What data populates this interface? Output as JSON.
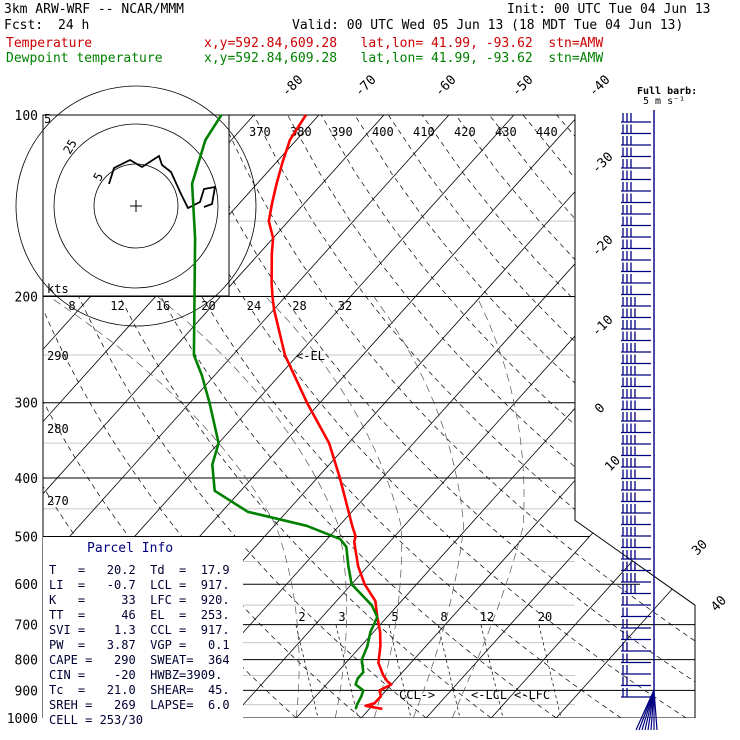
{
  "header": {
    "model": "3km ARW-WRF -- NCAR/MMM",
    "init": "Init: 00 UTC Tue 04 Jun 13",
    "fcst_label": "Fcst:",
    "fcst_value": "24 h",
    "valid": "Valid: 00 UTC Wed 05 Jun 13 (18 MDT Tue 04 Jun 13)",
    "temp_label": "Temperature",
    "dew_label": "Dewpoint temperature",
    "temp_info": "x,y=592.84,609.28   lat,lon= 41.99, -93.62  stn=AMW",
    "dew_info": "x,y=592.84,609.28   lat,lon= 41.99, -93.62  stn=AMW"
  },
  "barb_key": {
    "line1": "Full barb:",
    "line2": "5 m s⁻¹"
  },
  "colors": {
    "temperature": "#ff0000",
    "dewpoint": "#008000",
    "text_temp": "#cc0000",
    "text_dew": "#008000",
    "barbs": "#000080"
  },
  "chart_data": {
    "type": "line",
    "subtype": "skew-T log-p sounding",
    "y_label_values": [
      100,
      200,
      300,
      400,
      500,
      600,
      700,
      800,
      900,
      1000
    ],
    "ylim": [
      1000,
      100
    ],
    "y_scale": "log",
    "isotherm_labels": [
      -80,
      -70,
      -60,
      -50,
      -40,
      -30,
      -20,
      -10,
      0,
      10,
      30,
      40
    ],
    "theta_e_labels": [
      370,
      380,
      390,
      400,
      410,
      420,
      430,
      440
    ],
    "theta_labels": [
      290,
      280,
      270
    ],
    "mixing_ratio_labels": [
      2,
      3,
      5,
      8,
      12,
      20
    ],
    "series": [
      {
        "name": "Temperature",
        "color": "#ff0000",
        "points": [
          {
            "p": 966,
            "t": 22
          },
          {
            "p": 955,
            "t": 19
          },
          {
            "p": 945,
            "t": 20
          },
          {
            "p": 920,
            "t": 20
          },
          {
            "p": 900,
            "t": 19
          },
          {
            "p": 880,
            "t": 20
          },
          {
            "p": 870,
            "t": 19
          },
          {
            "p": 850,
            "t": 17.5
          },
          {
            "p": 810,
            "t": 15
          },
          {
            "p": 760,
            "t": 13
          },
          {
            "p": 720,
            "t": 11
          },
          {
            "p": 680,
            "t": 8.5
          },
          {
            "p": 640,
            "t": 6
          },
          {
            "p": 600,
            "t": 2
          },
          {
            "p": 560,
            "t": -1.5
          },
          {
            "p": 510,
            "t": -5.5
          },
          {
            "p": 500,
            "t": -6
          },
          {
            "p": 480,
            "t": -8
          },
          {
            "p": 450,
            "t": -11
          },
          {
            "p": 400,
            "t": -16.5
          },
          {
            "p": 350,
            "t": -23
          },
          {
            "p": 300,
            "t": -32
          },
          {
            "p": 250,
            "t": -42
          },
          {
            "p": 210,
            "t": -50
          },
          {
            "p": 200,
            "t": -52
          },
          {
            "p": 190,
            "t": -54
          },
          {
            "p": 170,
            "t": -58
          },
          {
            "p": 160,
            "t": -60
          },
          {
            "p": 150,
            "t": -63
          },
          {
            "p": 140,
            "t": -65
          },
          {
            "p": 130,
            "t": -67
          },
          {
            "p": 120,
            "t": -69
          },
          {
            "p": 110,
            "t": -71
          },
          {
            "p": 100,
            "t": -72
          }
        ]
      },
      {
        "name": "Dewpoint temperature",
        "color": "#008000",
        "points": [
          {
            "p": 966,
            "t": 17.9
          },
          {
            "p": 950,
            "t": 17.5
          },
          {
            "p": 920,
            "t": 17
          },
          {
            "p": 900,
            "t": 16.5
          },
          {
            "p": 880,
            "t": 14.5
          },
          {
            "p": 860,
            "t": 14
          },
          {
            "p": 840,
            "t": 14
          },
          {
            "p": 800,
            "t": 12
          },
          {
            "p": 760,
            "t": 11
          },
          {
            "p": 720,
            "t": 9.5
          },
          {
            "p": 680,
            "t": 8.5
          },
          {
            "p": 650,
            "t": 6
          },
          {
            "p": 600,
            "t": 0
          },
          {
            "p": 560,
            "t": -3
          },
          {
            "p": 520,
            "t": -6
          },
          {
            "p": 505,
            "t": -8
          },
          {
            "p": 480,
            "t": -15
          },
          {
            "p": 455,
            "t": -26
          },
          {
            "p": 420,
            "t": -34
          },
          {
            "p": 380,
            "t": -38
          },
          {
            "p": 350,
            "t": -40
          },
          {
            "p": 300,
            "t": -47
          },
          {
            "p": 270,
            "t": -52
          },
          {
            "p": 250,
            "t": -56
          },
          {
            "p": 200,
            "t": -64
          },
          {
            "p": 160,
            "t": -72
          },
          {
            "p": 130,
            "t": -80
          },
          {
            "p": 110,
            "t": -84
          },
          {
            "p": 100,
            "t": -85
          }
        ]
      }
    ],
    "level_markers": [
      {
        "label": "<-EL",
        "p": 253
      },
      {
        "label": "CCL->",
        "p": 917
      },
      {
        "label": "<-LCL",
        "p": 917
      },
      {
        "label": "<-LFC",
        "p": 920
      }
    ],
    "hodograph": {
      "units_label": "kts",
      "ring_labels": [
        "5",
        "25",
        "5"
      ],
      "speed_labels": [
        8,
        12,
        16,
        20,
        24,
        28,
        32
      ]
    }
  },
  "parcel_info": {
    "title": "Parcel Info",
    "rows": [
      "T   =   20.2  Td  =  17.9",
      "LI  =   -0.7  LCL =  917.",
      "K   =     33  LFC =  920.",
      "TT  =     46  EL  =  253.",
      "SVI =    1.3  CCL =  917.",
      "PW  =   3.87  VGP =   0.1",
      "CAPE =   290  SWEAT=  364",
      "CIN =    -20  HWBZ=3909.",
      "Tc  =   21.0  SHEAR=  45.",
      "SREH =   269  LAPSE=  6.0",
      "CELL = 253/30"
    ]
  }
}
